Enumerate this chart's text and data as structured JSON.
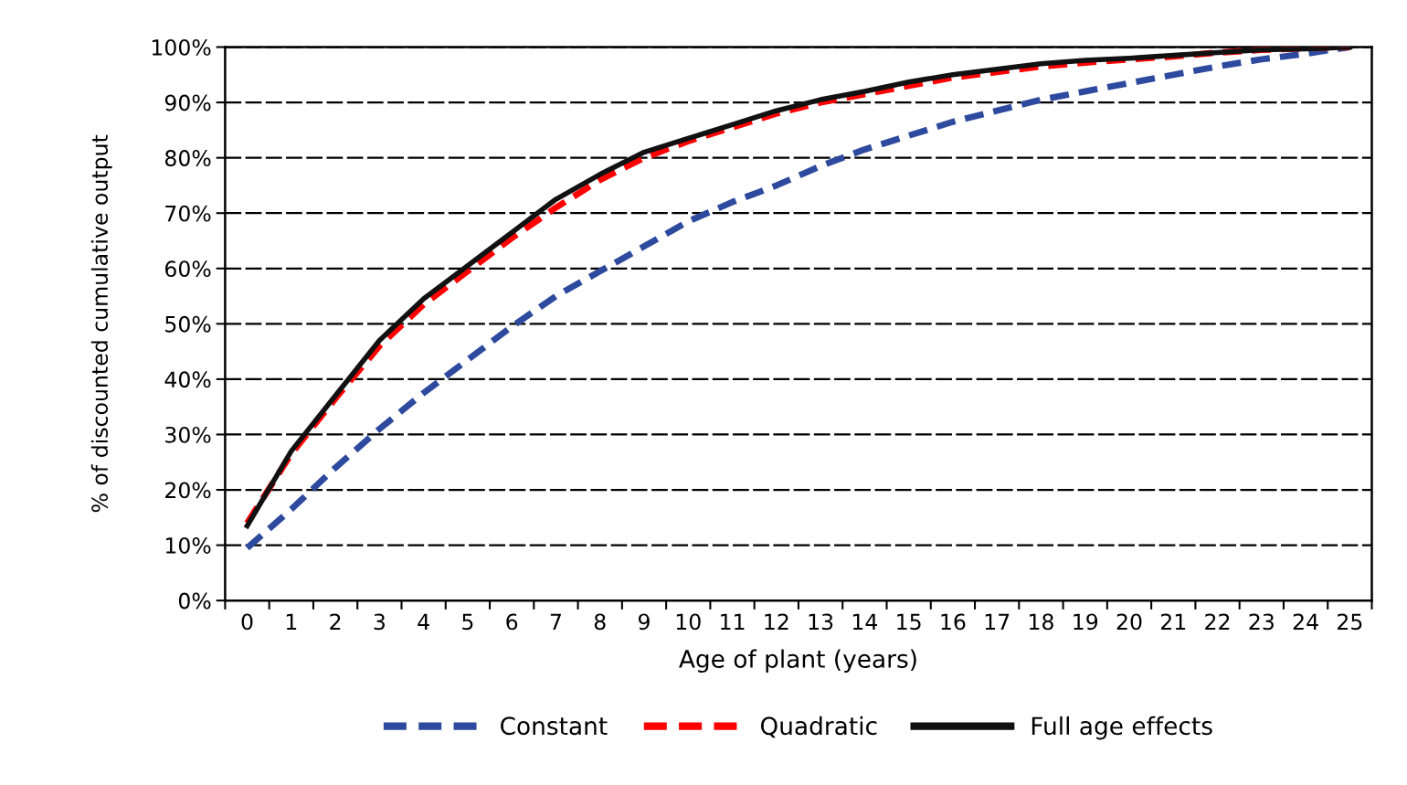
{
  "chart_data": {
    "type": "line",
    "xlabel": "Age of plant (years)",
    "ylabel": "% of discounted cumulative output",
    "categories": [
      "0",
      "1",
      "2",
      "3",
      "4",
      "5",
      "6",
      "7",
      "8",
      "9",
      "10",
      "11",
      "12",
      "13",
      "14",
      "15",
      "16",
      "17",
      "18",
      "19",
      "20",
      "21",
      "22",
      "23",
      "24",
      "25"
    ],
    "series": [
      {
        "name": "Constant",
        "color": "#2e4a9e",
        "line_style": "dashed",
        "values": [
          9.5,
          16.5,
          24,
          31,
          37.5,
          43.5,
          49.5,
          55,
          59.5,
          64,
          68.5,
          72,
          75,
          78.5,
          81.5,
          84,
          86.5,
          88.5,
          90.5,
          92,
          93.5,
          95,
          96.5,
          97.8,
          98.8,
          100
        ]
      },
      {
        "name": "Quadratic",
        "color": "#ff0000",
        "line_style": "dashed",
        "values": [
          14,
          26.5,
          36.5,
          46,
          53.5,
          59.5,
          65.5,
          71,
          76,
          80,
          83,
          85.5,
          88,
          90,
          91.5,
          93,
          94.5,
          95.5,
          96.5,
          97.2,
          97.8,
          98.3,
          99,
          99.5,
          99.8,
          100
        ]
      },
      {
        "name": "Full age effects",
        "color": "#111111",
        "line_style": "solid",
        "values": [
          13.5,
          27,
          37,
          47,
          54.5,
          60.5,
          66.5,
          72.5,
          77,
          81,
          83.5,
          86,
          88.5,
          90.5,
          92,
          93.7,
          95,
          96,
          97,
          97.6,
          98,
          98.5,
          99,
          99.5,
          99.7,
          100
        ]
      }
    ],
    "ylim": [
      0,
      100
    ],
    "yticks": [
      {
        "value": 0,
        "label": "0%"
      },
      {
        "value": 10,
        "label": "10%"
      },
      {
        "value": 20,
        "label": "20%"
      },
      {
        "value": 30,
        "label": "30%"
      },
      {
        "value": 40,
        "label": "40%"
      },
      {
        "value": 50,
        "label": "50%"
      },
      {
        "value": 60,
        "label": "60%"
      },
      {
        "value": 70,
        "label": "70%"
      },
      {
        "value": 80,
        "label": "80%"
      },
      {
        "value": 90,
        "label": "90%"
      },
      {
        "value": 100,
        "label": "100%"
      }
    ],
    "grid": "y",
    "legend": "bottom"
  }
}
